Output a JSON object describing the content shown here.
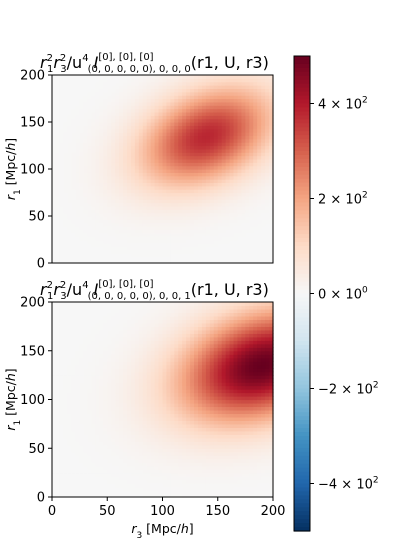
{
  "figure": {
    "colormap": "RdBu_r",
    "colors": {
      "high": "#67001f",
      "mid": "#f7f7f7",
      "low": "#053061"
    }
  },
  "chart_data": [
    {
      "type": "heatmap",
      "title": {
        "prefix_r1": "r",
        "prefix_r1_sub": "1",
        "prefix_r1_sup": "2",
        "prefix_r3": "r",
        "prefix_r3_sub": "3",
        "prefix_r3_sup": "2",
        "slash_u": "/u",
        "u_sup": "4",
        "I": "I",
        "I_sup": "[0], [0], [0]",
        "I_sub": "(0, 0, 0, 0, 0), 0, 0, 0",
        "args": "(r1, U, r3)"
      },
      "xlabel": "",
      "ylabel": "r1 [Mpc/h]",
      "xlim": [
        0,
        200
      ],
      "ylim": [
        0,
        200
      ],
      "yticks": [
        0,
        50,
        100,
        150,
        200
      ],
      "xticks": [],
      "peak": {
        "x": 140,
        "y": 135,
        "value": 380
      },
      "shape_sigma": {
        "x": 42,
        "y": 37,
        "xy_corr": 0.35
      }
    },
    {
      "type": "heatmap",
      "title": {
        "prefix_r1": "r",
        "prefix_r1_sub": "1",
        "prefix_r1_sup": "2",
        "prefix_r3": "r",
        "prefix_r3_sub": "3",
        "prefix_r3_sup": "2",
        "slash_u": "/u",
        "u_sup": "4",
        "I": "I",
        "I_sup": "[0], [0], [0]",
        "I_sub": "(0, 0, 0, 0, 0), 0, 0, 1",
        "args": "(r1, U, r3)"
      },
      "xlabel": "r3 [Mpc/h]",
      "ylabel": "r1 [Mpc/h]",
      "xlim": [
        0,
        200
      ],
      "ylim": [
        0,
        200
      ],
      "yticks": [
        0,
        50,
        100,
        150,
        200
      ],
      "xticks": [
        0,
        50,
        100,
        150,
        200
      ],
      "peak": {
        "x": 190,
        "y": 135,
        "value": 500
      },
      "shape_sigma": {
        "x": 52,
        "y": 40,
        "xy_corr": 0.3
      }
    }
  ],
  "colorbar": {
    "vmin": -500,
    "vmax": 500,
    "ticks": [
      {
        "value": 400,
        "mantissa": "4",
        "exp": "2",
        "sign": ""
      },
      {
        "value": 200,
        "mantissa": "2",
        "exp": "2",
        "sign": ""
      },
      {
        "value": 0,
        "mantissa": "0",
        "exp": "0",
        "sign": ""
      },
      {
        "value": -200,
        "mantissa": "2",
        "exp": "2",
        "sign": "−"
      },
      {
        "value": -400,
        "mantissa": "4",
        "exp": "2",
        "sign": "−"
      }
    ]
  }
}
